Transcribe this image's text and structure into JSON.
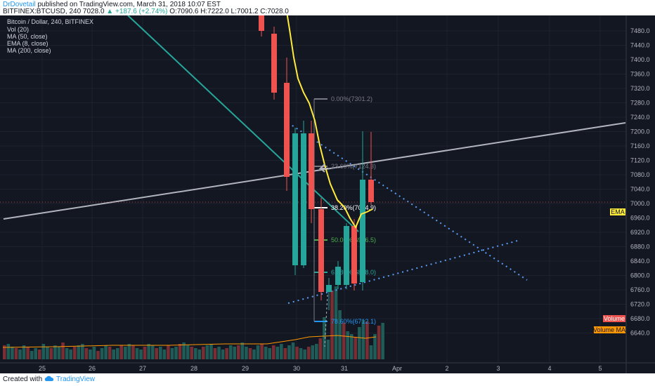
{
  "header": {
    "author": "DrDovetail",
    "published_text": "published on TradingView.com, March 31, 2018 10:07 EST",
    "symbol_line": "BITFINEX:BTCUSD, 240",
    "last": "7028.0",
    "change": "+187.6 (+2.74%)",
    "ohlc": "O:7090.6 H:7222.0 L:7001.2 C:7028.0"
  },
  "legend": {
    "title": "Bitcoin / Dollar, 240, BITFINEX",
    "indicators": [
      "Vol (20)",
      "MA (50, close)",
      "EMA (8, close)",
      "MA (200, close)"
    ]
  },
  "y_axis": {
    "labels": [
      "7480.0",
      "7440.0",
      "7400.0",
      "7360.0",
      "7320.0",
      "7280.0",
      "7240.0",
      "7200.0",
      "7160.0",
      "7120.0",
      "7080.0",
      "7040.0",
      "7000.0",
      "6960.0",
      "6920.0",
      "6880.0",
      "6840.0",
      "6800.0",
      "6760.0",
      "6720.0",
      "6680.0",
      "6640.0"
    ],
    "badges": {
      "ema": "EMA",
      "volume": "Volume",
      "volume_ma": "Volume MA"
    }
  },
  "x_axis": {
    "labels": [
      "25",
      "26",
      "27",
      "28",
      "29",
      "30",
      "31",
      "Apr",
      "2",
      "3",
      "4",
      "5"
    ]
  },
  "fib": {
    "labels": [
      "0.00%(7301.2)",
      "23.60%(7124.3)",
      "38.20%(7014.9)",
      "50.00%(6926.5)",
      "61.80%(6838.0)",
      "78.60%(6712.1)"
    ],
    "colors": [
      "#787b86",
      "#787b86",
      "#ffffff",
      "#4caf50",
      "#26a69a",
      "#2196f3"
    ]
  },
  "colors": {
    "background": "#131722",
    "up": "#26a69a",
    "down": "#ef5350",
    "ema": "#ffeb3b",
    "ma": "#26a69a",
    "trendline": "#b2b5be",
    "dotted": "#5b9cf6",
    "volume_ma": "#ff9800"
  },
  "footer": {
    "created_with": "Created with",
    "brand": "TradingView"
  }
}
